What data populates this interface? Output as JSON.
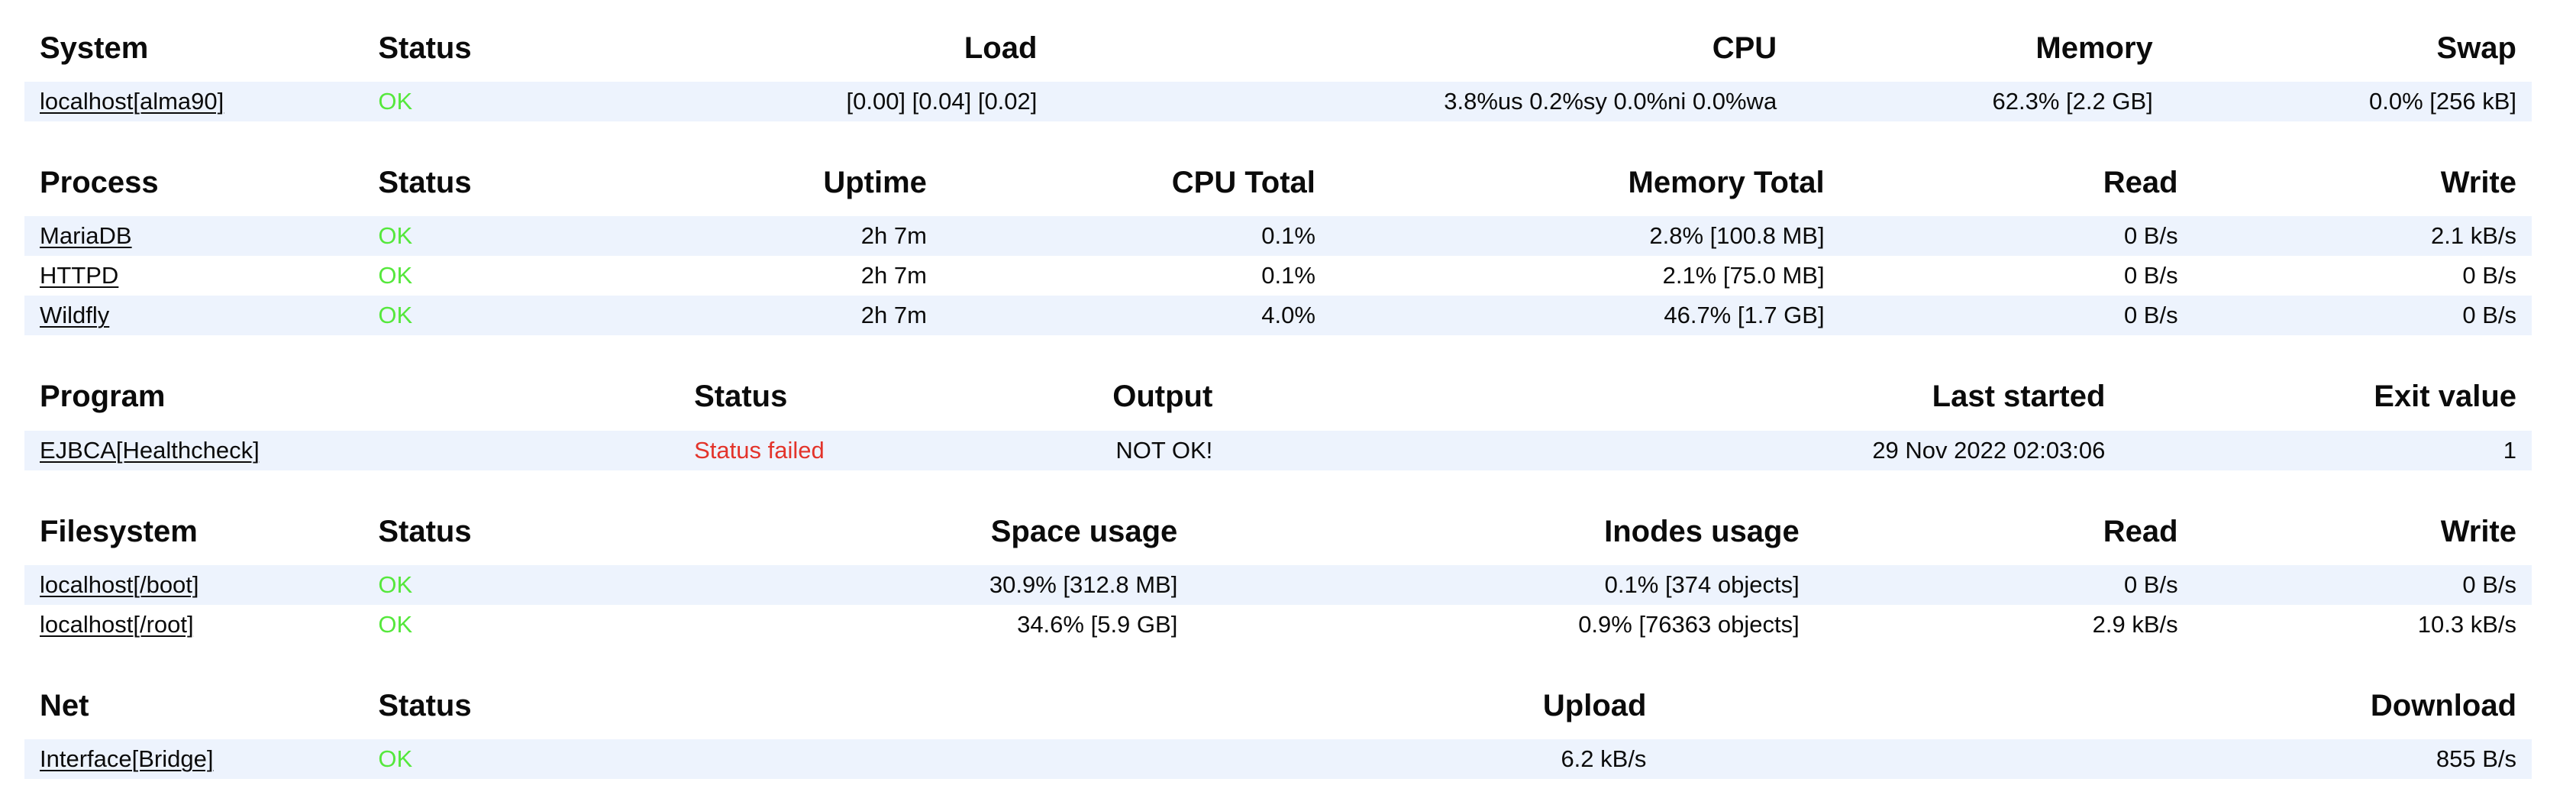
{
  "colors": {
    "stripe_row_bg": "#edf3fd",
    "status_ok": "#55e83c",
    "status_failed": "#e3332a",
    "text": "#0b0b0b"
  },
  "tables": [
    {
      "name": "system",
      "columns": [
        {
          "label": "System",
          "align": "left",
          "width": "13.5%"
        },
        {
          "label": "Status",
          "align": "left",
          "width": "13.5%"
        },
        {
          "label": "Load",
          "align": "right",
          "width": "14%"
        },
        {
          "label": "CPU",
          "align": "right",
          "width": "29.5%"
        },
        {
          "label": "Memory",
          "align": "right",
          "width": "15%"
        },
        {
          "label": "Swap",
          "align": "right",
          "width": "14.5%"
        }
      ],
      "rows": [
        {
          "status": "ok",
          "cells": [
            "localhost[alma90]",
            "OK",
            "[0.00] [0.04] [0.02]",
            "3.8%us 0.2%sy 0.0%ni 0.0%wa",
            "62.3% [2.2 GB]",
            "0.0% [256 kB]"
          ]
        }
      ]
    },
    {
      "name": "process",
      "columns": [
        {
          "label": "Process",
          "align": "left",
          "width": "13.5%"
        },
        {
          "label": "Status",
          "align": "left",
          "width": "9.5%"
        },
        {
          "label": "Uptime",
          "align": "right",
          "width": "13.6%"
        },
        {
          "label": "CPU Total",
          "align": "right",
          "width": "15.5%"
        },
        {
          "label": "Memory Total",
          "align": "right",
          "width": "20.3%"
        },
        {
          "label": "Read",
          "align": "right",
          "width": "14.1%"
        },
        {
          "label": "Write",
          "align": "right",
          "width": "13.5%"
        }
      ],
      "rows": [
        {
          "status": "ok",
          "cells": [
            "MariaDB",
            "OK",
            "2h 7m",
            "0.1%",
            "2.8% [100.8 MB]",
            "0 B/s",
            "2.1 kB/s"
          ]
        },
        {
          "status": "ok",
          "cells": [
            "HTTPD",
            "OK",
            "2h 7m",
            "0.1%",
            "2.1% [75.0 MB]",
            "0 B/s",
            "0 B/s"
          ]
        },
        {
          "status": "ok",
          "cells": [
            "Wildfly",
            "OK",
            "2h 7m",
            "4.0%",
            "46.7% [1.7 GB]",
            "0 B/s",
            "0 B/s"
          ]
        }
      ]
    },
    {
      "name": "program",
      "columns": [
        {
          "label": "Program",
          "align": "left",
          "width": "26.1%"
        },
        {
          "label": "Status",
          "align": "left",
          "width": "9.9%"
        },
        {
          "label": "Output",
          "align": "right",
          "width": "12%"
        },
        {
          "label": "Last started",
          "align": "right",
          "width": "35.6%"
        },
        {
          "label": "Exit value",
          "align": "right",
          "width": "16.4%"
        }
      ],
      "rows": [
        {
          "status": "failed",
          "cells": [
            "EJBCA[Healthcheck]",
            "Status failed",
            "NOT OK!",
            "29 Nov 2022 02:03:06",
            "1"
          ]
        }
      ]
    },
    {
      "name": "filesystem",
      "columns": [
        {
          "label": "Filesystem",
          "align": "left",
          "width": "13.5%"
        },
        {
          "label": "Status",
          "align": "left",
          "width": "10.5%"
        },
        {
          "label": "Space usage",
          "align": "right",
          "width": "22.6%"
        },
        {
          "label": "Inodes usage",
          "align": "right",
          "width": "24.8%"
        },
        {
          "label": "Read",
          "align": "right",
          "width": "15.1%"
        },
        {
          "label": "Write",
          "align": "right",
          "width": "13.5%"
        }
      ],
      "rows": [
        {
          "status": "ok",
          "cells": [
            "localhost[/boot]",
            "OK",
            "30.9% [312.8 MB]",
            "0.1% [374 objects]",
            "0 B/s",
            "0 B/s"
          ]
        },
        {
          "status": "ok",
          "cells": [
            "localhost[/root]",
            "OK",
            "34.6% [5.9 GB]",
            "0.9% [76363 objects]",
            "2.9 kB/s",
            "10.3 kB/s"
          ]
        }
      ]
    },
    {
      "name": "net",
      "columns": [
        {
          "label": "Net",
          "align": "left",
          "width": "13.5%"
        },
        {
          "label": "Status",
          "align": "left",
          "width": "16.5%"
        },
        {
          "label": "Upload",
          "align": "right",
          "width": "35.3%"
        },
        {
          "label": "Download",
          "align": "right",
          "width": "34.7%"
        }
      ],
      "rows": [
        {
          "status": "ok",
          "cells": [
            "Interface[Bridge]",
            "OK",
            "6.2 kB/s",
            "855 B/s"
          ]
        }
      ]
    }
  ]
}
